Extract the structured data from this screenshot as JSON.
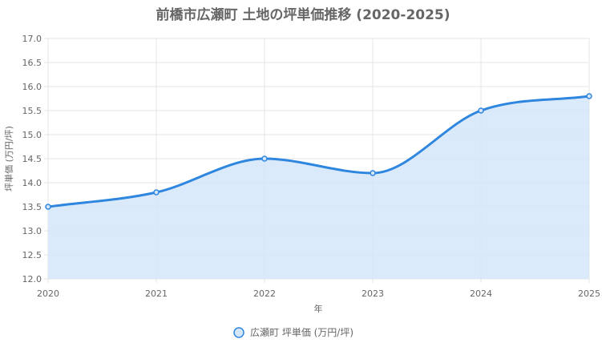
{
  "chart_data": {
    "type": "area",
    "title": "前橋市広瀬町 土地の坪単価推移 (2020-2025)",
    "xlabel": "年",
    "ylabel": "坪単価 (万円/坪)",
    "x": [
      "2020",
      "2021",
      "2022",
      "2023",
      "2024",
      "2025"
    ],
    "y_ticks": [
      "12.0",
      "12.5",
      "13.0",
      "13.5",
      "14.0",
      "14.5",
      "15.0",
      "15.5",
      "16.0",
      "16.5",
      "17.0"
    ],
    "ylim": [
      12.0,
      17.0
    ],
    "grid": true,
    "legend_position": "bottom",
    "series": [
      {
        "name": "広瀬町 坪単価 (万円/坪)",
        "values": [
          13.5,
          13.8,
          14.5,
          14.2,
          15.5,
          15.8
        ],
        "color": "#2e86de",
        "fill": "#d4e6fa"
      }
    ]
  }
}
